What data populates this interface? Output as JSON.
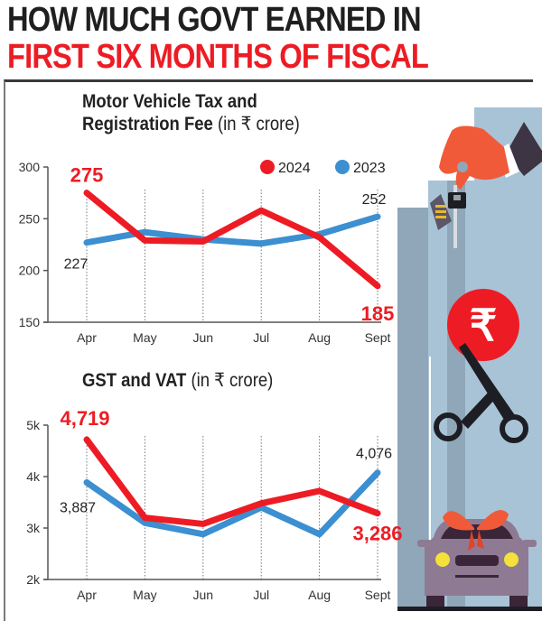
{
  "headline": {
    "line1": "HOW MUCH GOVT EARNED IN",
    "line2": "FIRST SIX MONTHS OF FISCAL"
  },
  "colors": {
    "series_2024": "#ed1c24",
    "series_2023": "#3c8fd0",
    "headline_dark": "#1f1f1f",
    "headline_red": "#ed1c24"
  },
  "illustration": {
    "icons": [
      "hand-with-car-keys-icon",
      "rupee-coin-icon",
      "scissors-icon",
      "car-with-ribbon-icon"
    ]
  },
  "chart_data": [
    {
      "type": "line",
      "title": "Motor Vehicle Tax and Registration Fee",
      "title_line1": "Motor Vehicle Tax and",
      "title_line2": "Registration Fee",
      "unit": "(in ₹ crore)",
      "xlabel": "",
      "ylabel": "",
      "categories": [
        "Apr",
        "May",
        "Jun",
        "Jul",
        "Aug",
        "Sept"
      ],
      "ylim": [
        150,
        300
      ],
      "yticks": [
        150,
        200,
        250,
        300
      ],
      "ytick_labels": [
        "150",
        "200",
        "250",
        "300"
      ],
      "grid": "vertical dotted",
      "legend": {
        "placement": "top-right",
        "entries": [
          "2024",
          "2023"
        ]
      },
      "series": [
        {
          "name": "2024",
          "values": [
            275,
            229,
            228,
            258,
            232,
            185
          ]
        },
        {
          "name": "2023",
          "values": [
            227,
            237,
            230,
            226,
            235,
            252
          ]
        }
      ],
      "annotations": [
        {
          "series": "2024",
          "category": "Apr",
          "text": "275"
        },
        {
          "series": "2024",
          "category": "Sept",
          "text": "185"
        },
        {
          "series": "2023",
          "category": "Apr",
          "text": "227"
        },
        {
          "series": "2023",
          "category": "Sept",
          "text": "252"
        }
      ]
    },
    {
      "type": "line",
      "title": "GST and VAT",
      "unit": "(in ₹ crore)",
      "xlabel": "",
      "ylabel": "",
      "categories": [
        "Apr",
        "May",
        "Jun",
        "Jul",
        "Aug",
        "Sept"
      ],
      "ylim": [
        2000,
        5000
      ],
      "yticks": [
        2000,
        3000,
        4000,
        5000
      ],
      "ytick_labels": [
        "2k",
        "3k",
        "4k",
        "5k"
      ],
      "grid": "vertical dotted",
      "series": [
        {
          "name": "2024",
          "values": [
            4719,
            3200,
            3080,
            3480,
            3720,
            3286
          ]
        },
        {
          "name": "2023",
          "values": [
            3887,
            3100,
            2880,
            3400,
            2880,
            4076
          ]
        }
      ],
      "annotations": [
        {
          "series": "2024",
          "category": "Apr",
          "text": "4,719"
        },
        {
          "series": "2024",
          "category": "Sept",
          "text": "3,286"
        },
        {
          "series": "2023",
          "category": "Apr",
          "text": "3,887"
        },
        {
          "series": "2023",
          "category": "Sept",
          "text": "4,076"
        }
      ]
    }
  ]
}
